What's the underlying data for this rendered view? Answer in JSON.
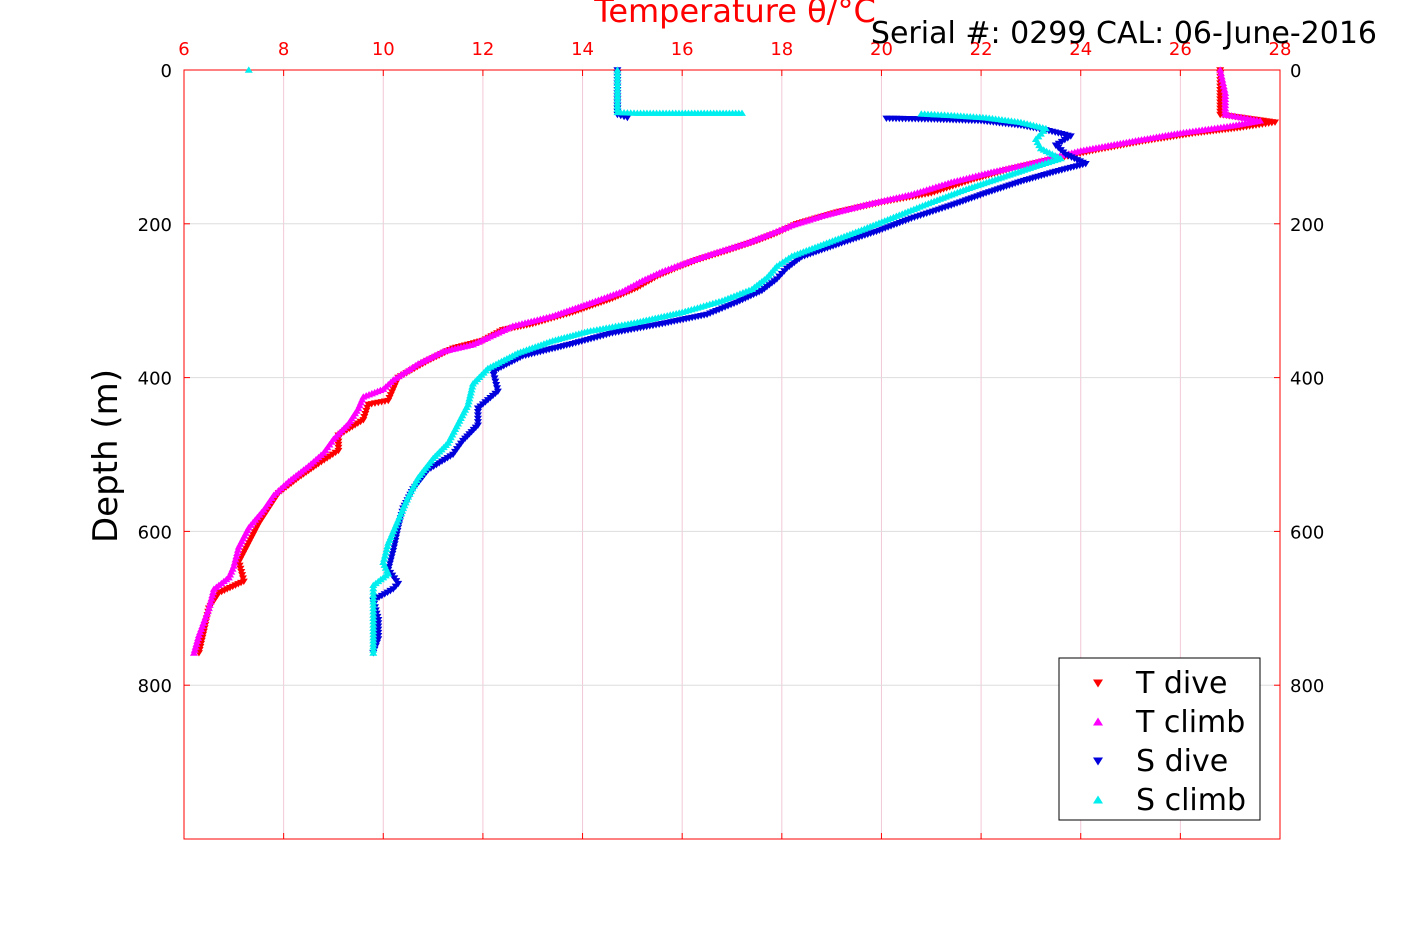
{
  "chart_data": {
    "type": "scatter",
    "title": "Temperature θ/°C",
    "subtitle": "Serial #: 0299 CAL: 06-June-2016",
    "xlabel": "Temperature θ/°C",
    "ylabel": "Depth (m)",
    "xlim": [
      6,
      28
    ],
    "ylim": [
      0,
      1000
    ],
    "y_reversed": true,
    "x_axis_position": "top",
    "x_ticks": [
      "6",
      "8",
      "10",
      "12",
      "14",
      "16",
      "18",
      "20",
      "22",
      "24",
      "26",
      "28"
    ],
    "y_ticks": [
      "0",
      "200",
      "400",
      "600",
      "800"
    ],
    "grid": true,
    "legend_position": "bottom-right",
    "colors": {
      "axis_box": "#ff0000",
      "x_tick_labels": "#ff0000",
      "y_tick_labels": "#000000",
      "grid": "#dddddd"
    },
    "series": [
      {
        "name": "T dive",
        "marker": "triangle-down",
        "color": "#ff0000",
        "points": [
          [
            26.8,
            0
          ],
          [
            26.8,
            30
          ],
          [
            26.8,
            58
          ],
          [
            27.9,
            68
          ],
          [
            27.2,
            75
          ],
          [
            26.3,
            82
          ],
          [
            25.3,
            92
          ],
          [
            24.3,
            104
          ],
          [
            23.3,
            118
          ],
          [
            22.5,
            130
          ],
          [
            21.8,
            143
          ],
          [
            21.0,
            160
          ],
          [
            20.0,
            172
          ],
          [
            19.1,
            185
          ],
          [
            18.3,
            200
          ],
          [
            17.9,
            212
          ],
          [
            17.5,
            222
          ],
          [
            16.9,
            235
          ],
          [
            16.3,
            247
          ],
          [
            15.9,
            257
          ],
          [
            15.5,
            268
          ],
          [
            15.1,
            283
          ],
          [
            14.6,
            297
          ],
          [
            13.8,
            315
          ],
          [
            13.0,
            330
          ],
          [
            12.4,
            338
          ],
          [
            12.0,
            352
          ],
          [
            11.4,
            362
          ],
          [
            10.9,
            378
          ],
          [
            10.3,
            400
          ],
          [
            10.2,
            415
          ],
          [
            10.1,
            430
          ],
          [
            9.7,
            435
          ],
          [
            9.6,
            455
          ],
          [
            9.1,
            475
          ],
          [
            9.1,
            495
          ],
          [
            8.7,
            512
          ],
          [
            8.3,
            530
          ],
          [
            7.9,
            550
          ],
          [
            7.7,
            570
          ],
          [
            7.5,
            590
          ],
          [
            7.3,
            615
          ],
          [
            7.1,
            640
          ],
          [
            7.2,
            665
          ],
          [
            6.7,
            680
          ],
          [
            6.5,
            700
          ],
          [
            6.4,
            730
          ],
          [
            6.3,
            758
          ]
        ]
      },
      {
        "name": "T climb",
        "marker": "triangle-up",
        "color": "#ff00ff",
        "points": [
          [
            26.8,
            0
          ],
          [
            26.9,
            30
          ],
          [
            26.9,
            58
          ],
          [
            27.6,
            66
          ],
          [
            27.0,
            73
          ],
          [
            26.0,
            82
          ],
          [
            25.1,
            92
          ],
          [
            24.0,
            105
          ],
          [
            23.1,
            120
          ],
          [
            22.2,
            133
          ],
          [
            21.4,
            146
          ],
          [
            20.6,
            162
          ],
          [
            19.7,
            175
          ],
          [
            18.8,
            190
          ],
          [
            18.2,
            202
          ],
          [
            17.7,
            215
          ],
          [
            17.3,
            225
          ],
          [
            16.7,
            237
          ],
          [
            16.1,
            250
          ],
          [
            15.6,
            262
          ],
          [
            15.2,
            274
          ],
          [
            14.8,
            288
          ],
          [
            14.2,
            302
          ],
          [
            13.4,
            320
          ],
          [
            12.6,
            333
          ],
          [
            12.2,
            345
          ],
          [
            11.8,
            357
          ],
          [
            11.2,
            366
          ],
          [
            10.7,
            382
          ],
          [
            10.2,
            403
          ],
          [
            10.0,
            415
          ],
          [
            9.6,
            425
          ],
          [
            9.5,
            440
          ],
          [
            9.3,
            460
          ],
          [
            9.0,
            480
          ],
          [
            8.8,
            498
          ],
          [
            8.5,
            515
          ],
          [
            8.1,
            535
          ],
          [
            7.8,
            553
          ],
          [
            7.6,
            572
          ],
          [
            7.3,
            595
          ],
          [
            7.1,
            620
          ],
          [
            7.0,
            645
          ],
          [
            6.9,
            660
          ],
          [
            6.6,
            675
          ],
          [
            6.5,
            700
          ],
          [
            6.3,
            735
          ],
          [
            6.2,
            758
          ]
        ]
      },
      {
        "name": "S dive",
        "marker": "triangle-down",
        "color": "#0000dd",
        "points": [
          [
            14.7,
            0
          ],
          [
            14.7,
            30
          ],
          [
            14.7,
            58
          ],
          [
            14.9,
            62
          ],
          [
            20.1,
            63
          ],
          [
            21.0,
            64
          ],
          [
            22.0,
            66
          ],
          [
            22.8,
            72
          ],
          [
            23.3,
            78
          ],
          [
            23.8,
            86
          ],
          [
            23.5,
            98
          ],
          [
            23.7,
            110
          ],
          [
            24.1,
            122
          ],
          [
            23.5,
            132
          ],
          [
            22.8,
            145
          ],
          [
            22.1,
            160
          ],
          [
            21.4,
            176
          ],
          [
            20.6,
            193
          ],
          [
            19.9,
            210
          ],
          [
            19.2,
            225
          ],
          [
            18.4,
            243
          ],
          [
            18.1,
            258
          ],
          [
            17.9,
            272
          ],
          [
            17.6,
            287
          ],
          [
            17.1,
            302
          ],
          [
            16.5,
            318
          ],
          [
            15.6,
            330
          ],
          [
            14.6,
            342
          ],
          [
            13.8,
            356
          ],
          [
            12.8,
            372
          ],
          [
            12.2,
            392
          ],
          [
            12.3,
            418
          ],
          [
            11.9,
            440
          ],
          [
            11.9,
            462
          ],
          [
            11.6,
            482
          ],
          [
            11.4,
            500
          ],
          [
            10.9,
            520
          ],
          [
            10.6,
            545
          ],
          [
            10.4,
            570
          ],
          [
            10.3,
            595
          ],
          [
            10.2,
            625
          ],
          [
            10.1,
            650
          ],
          [
            10.3,
            668
          ],
          [
            10.2,
            675
          ],
          [
            9.8,
            690
          ],
          [
            9.9,
            715
          ],
          [
            9.9,
            740
          ],
          [
            9.8,
            758
          ]
        ]
      },
      {
        "name": "S climb",
        "marker": "triangle-up",
        "color": "#00eeee",
        "points": [
          [
            7.3,
            0
          ],
          [
            14.7,
            0
          ],
          [
            14.7,
            30
          ],
          [
            14.7,
            55
          ],
          [
            15.1,
            56
          ],
          [
            16.0,
            56
          ],
          [
            17.2,
            56
          ],
          [
            20.8,
            57
          ],
          [
            21.4,
            59
          ],
          [
            22.1,
            62
          ],
          [
            22.8,
            68
          ],
          [
            23.3,
            76
          ],
          [
            23.1,
            90
          ],
          [
            23.2,
            102
          ],
          [
            23.6,
            115
          ],
          [
            23.1,
            125
          ],
          [
            22.4,
            140
          ],
          [
            21.7,
            155
          ],
          [
            21.0,
            172
          ],
          [
            20.3,
            190
          ],
          [
            19.6,
            208
          ],
          [
            18.9,
            225
          ],
          [
            18.2,
            242
          ],
          [
            17.9,
            255
          ],
          [
            17.7,
            270
          ],
          [
            17.4,
            285
          ],
          [
            16.8,
            300
          ],
          [
            16.0,
            315
          ],
          [
            15.1,
            328
          ],
          [
            14.1,
            340
          ],
          [
            13.4,
            352
          ],
          [
            12.7,
            368
          ],
          [
            12.1,
            388
          ],
          [
            11.8,
            408
          ],
          [
            11.7,
            435
          ],
          [
            11.5,
            460
          ],
          [
            11.3,
            485
          ],
          [
            11.0,
            505
          ],
          [
            10.7,
            530
          ],
          [
            10.5,
            555
          ],
          [
            10.3,
            585
          ],
          [
            10.1,
            615
          ],
          [
            10.0,
            640
          ],
          [
            10.1,
            655
          ],
          [
            9.8,
            670
          ],
          [
            9.8,
            700
          ],
          [
            9.8,
            730
          ],
          [
            9.8,
            758
          ]
        ]
      }
    ]
  }
}
